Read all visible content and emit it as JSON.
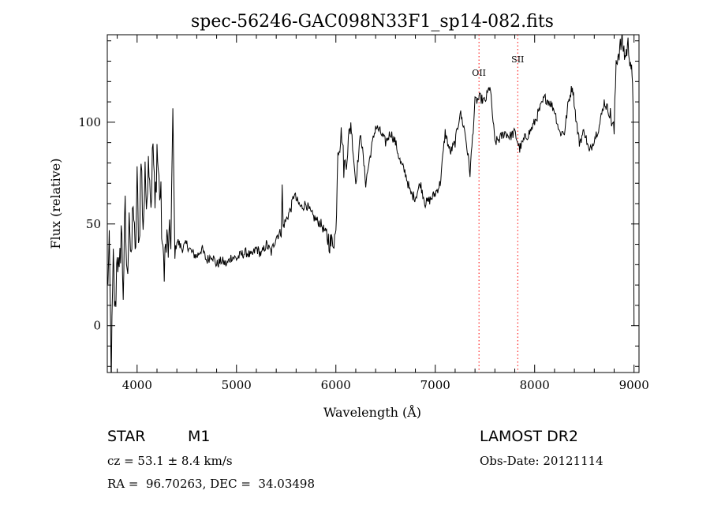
{
  "chart_data": {
    "type": "line",
    "title": "spec-56246-GAC098N33F1_sp14-082.fits",
    "xlabel": "Wavelength (Å)",
    "ylabel": "Flux (relative)",
    "xlim": [
      3700,
      9050
    ],
    "ylim": [
      -23,
      143
    ],
    "x_ticks": [
      4000,
      5000,
      6000,
      7000,
      8000,
      9000
    ],
    "y_ticks": [
      0,
      50,
      100
    ],
    "grid": false,
    "line_color": "#000000",
    "marker_color": "#ff0000",
    "markers": [
      {
        "label": "OII",
        "x": 7440
      },
      {
        "label": "SII",
        "x": 7830
      }
    ],
    "series": [
      {
        "x": [
          3700,
          3720,
          3740,
          3760,
          3780,
          3800,
          3820,
          3840,
          3860,
          3880,
          3900,
          3920,
          3940,
          3960,
          3980,
          4000,
          4020,
          4040,
          4060,
          4080,
          4100,
          4120,
          4140,
          4160,
          4180,
          4200,
          4220,
          4240,
          4260,
          4280,
          4300,
          4320,
          4340,
          4360,
          4380,
          4400,
          4450,
          4500,
          4550,
          4600,
          4650,
          4700,
          4750,
          4800,
          4850,
          4900,
          4950,
          5000,
          5050,
          5100,
          5150,
          5200,
          5250,
          5300,
          5350,
          5400,
          5450,
          5460,
          5470,
          5480,
          5500,
          5550,
          5580,
          5600,
          5650,
          5700,
          5750,
          5800,
          5850,
          5900,
          5950,
          6000,
          6020,
          6040,
          6060,
          6080,
          6100,
          6150,
          6200,
          6250,
          6300,
          6350,
          6400,
          6450,
          6500,
          6550,
          6600,
          6650,
          6700,
          6750,
          6800,
          6850,
          6900,
          6950,
          7000,
          7050,
          7100,
          7150,
          7200,
          7250,
          7300,
          7350,
          7400,
          7450,
          7500,
          7550,
          7600,
          7650,
          7700,
          7750,
          7800,
          7850,
          7900,
          7950,
          8000,
          8050,
          8100,
          8150,
          8200,
          8250,
          8300,
          8340,
          8380,
          8420,
          8450,
          8500,
          8550,
          8600,
          8650,
          8700,
          8750,
          8780,
          8800,
          8820,
          8850,
          8880,
          8910,
          8940,
          8970,
          8980,
          8990,
          9000
        ],
        "y": [
          20,
          35,
          -22,
          30,
          5,
          40,
          20,
          50,
          18,
          55,
          20,
          60,
          25,
          65,
          30,
          70,
          40,
          82,
          50,
          70,
          68,
          85,
          60,
          90,
          55,
          88,
          70,
          60,
          30,
          35,
          40,
          38,
          45,
          105,
          35,
          42,
          38,
          40,
          36,
          34,
          38,
          32,
          35,
          30,
          32,
          30,
          34,
          33,
          35,
          36,
          34,
          38,
          35,
          40,
          36,
          44,
          46,
          68,
          48,
          50,
          52,
          58,
          65,
          62,
          58,
          60,
          55,
          52,
          50,
          45,
          40,
          45,
          88,
          90,
          95,
          78,
          80,
          100,
          70,
          95,
          70,
          85,
          98,
          95,
          90,
          95,
          90,
          80,
          75,
          65,
          63,
          70,
          60,
          62,
          65,
          70,
          95,
          85,
          90,
          105,
          95,
          75,
          110,
          112,
          110,
          118,
          90,
          92,
          95,
          93,
          95,
          87,
          92,
          95,
          100,
          106,
          112,
          110,
          106,
          95,
          95,
          110,
          118,
          100,
          90,
          96,
          85,
          92,
          98,
          110,
          105,
          100,
          95,
          130,
          135,
          140,
          132,
          138,
          128,
          120,
          110,
          0
        ]
      }
    ]
  },
  "info": {
    "object_class": "STAR",
    "subclass": "M1",
    "survey": "LAMOST DR2",
    "cz": "cz = 53.1 ± 8.4 km/s",
    "obs_date": "Obs-Date: 20121114",
    "coords": "RA =  96.70263, DEC =  34.03498"
  }
}
